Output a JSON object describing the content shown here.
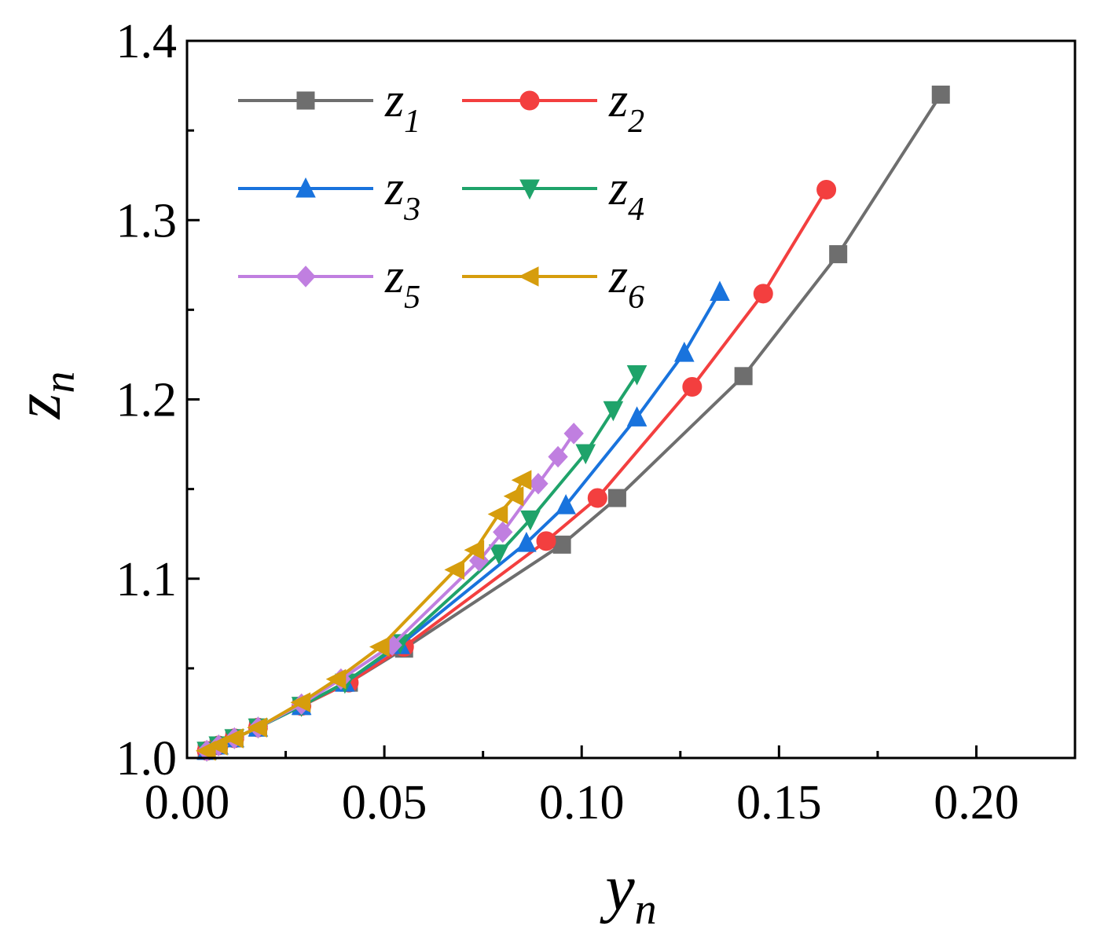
{
  "chart_data": {
    "type": "line",
    "title": "",
    "xlabel": {
      "base": "y",
      "sub": "n"
    },
    "ylabel": {
      "base": "z",
      "sub": "n"
    },
    "xlim": [
      0.0,
      0.225
    ],
    "ylim": [
      1.0,
      1.4
    ],
    "xticks": [
      "0.00",
      "0.05",
      "0.10",
      "0.15",
      "0.20"
    ],
    "yticks": [
      "1.0",
      "1.1",
      "1.2",
      "1.3",
      "1.4"
    ],
    "legend_position": "top-left",
    "series": [
      {
        "name": "z",
        "sub": "1",
        "color": "#6e6e6e",
        "marker": "square",
        "x": [
          0.005,
          0.008,
          0.012,
          0.018,
          0.029,
          0.041,
          0.055,
          0.095,
          0.109,
          0.141,
          0.165,
          0.191
        ],
        "y": [
          1.004,
          1.007,
          1.011,
          1.017,
          1.029,
          1.042,
          1.061,
          1.119,
          1.145,
          1.213,
          1.281,
          1.37
        ]
      },
      {
        "name": "z",
        "sub": "2",
        "color": "#f33f3f",
        "marker": "circle",
        "x": [
          0.005,
          0.008,
          0.012,
          0.018,
          0.029,
          0.041,
          0.055,
          0.091,
          0.104,
          0.128,
          0.146,
          0.162
        ],
        "y": [
          1.004,
          1.007,
          1.011,
          1.017,
          1.029,
          1.042,
          1.062,
          1.121,
          1.145,
          1.207,
          1.259,
          1.317
        ]
      },
      {
        "name": "z",
        "sub": "3",
        "color": "#1973dd",
        "marker": "triangle-up",
        "x": [
          0.005,
          0.008,
          0.012,
          0.018,
          0.029,
          0.04,
          0.054,
          0.086,
          0.096,
          0.114,
          0.126,
          0.135
        ],
        "y": [
          1.004,
          1.007,
          1.011,
          1.017,
          1.029,
          1.042,
          1.063,
          1.12,
          1.141,
          1.19,
          1.226,
          1.26
        ]
      },
      {
        "name": "z",
        "sub": "4",
        "color": "#1fa36a",
        "marker": "triangle-down",
        "x": [
          0.005,
          0.008,
          0.012,
          0.018,
          0.029,
          0.04,
          0.054,
          0.079,
          0.087,
          0.101,
          0.108,
          0.114
        ],
        "y": [
          1.004,
          1.007,
          1.011,
          1.017,
          1.029,
          1.042,
          1.064,
          1.114,
          1.133,
          1.17,
          1.194,
          1.214
        ]
      },
      {
        "name": "z",
        "sub": "5",
        "color": "#c07fe0",
        "marker": "diamond",
        "x": [
          0.005,
          0.008,
          0.012,
          0.018,
          0.029,
          0.039,
          0.052,
          0.074,
          0.08,
          0.089,
          0.094,
          0.098
        ],
        "y": [
          1.004,
          1.007,
          1.011,
          1.017,
          1.03,
          1.044,
          1.063,
          1.11,
          1.126,
          1.153,
          1.168,
          1.181
        ]
      },
      {
        "name": "z",
        "sub": "6",
        "color": "#d69d0d",
        "marker": "triangle-left",
        "x": [
          0.005,
          0.008,
          0.012,
          0.018,
          0.029,
          0.038,
          0.049,
          0.068,
          0.073,
          0.079,
          0.083,
          0.085
        ],
        "y": [
          1.004,
          1.007,
          1.011,
          1.017,
          1.031,
          1.044,
          1.062,
          1.105,
          1.116,
          1.136,
          1.146,
          1.155
        ]
      }
    ]
  }
}
